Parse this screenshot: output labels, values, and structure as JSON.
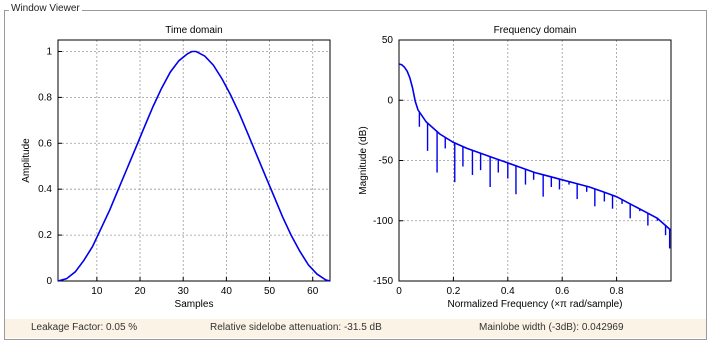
{
  "window": {
    "group_title": "Window Viewer"
  },
  "status": {
    "leakage": "Leakage Factor: 0.05 %",
    "sidelobe": "Relative sidelobe attenuation: -31.5 dB",
    "mainlobe": "Mainlobe width (-3dB): 0.042969"
  },
  "colors": {
    "line": "#0000ee",
    "grid": "#9a9a9a",
    "status_bg": "#fbf3e5"
  },
  "chart_data": [
    {
      "type": "line",
      "title": "Time domain",
      "xlabel": "Samples",
      "ylabel": "Amplitude",
      "xlim": [
        1,
        64
      ],
      "ylim": [
        0,
        1.05
      ],
      "xticks": [
        10,
        20,
        30,
        40,
        50,
        60
      ],
      "yticks": [
        0,
        0.2,
        0.4,
        0.6,
        0.8,
        1
      ],
      "grid": true,
      "series": [
        {
          "x": [
            1,
            3,
            5,
            7,
            9,
            11,
            13,
            15,
            17,
            19,
            21,
            23,
            25,
            27,
            29,
            31,
            32,
            33,
            35,
            37,
            39,
            41,
            43,
            45,
            47,
            49,
            51,
            53,
            55,
            57,
            59,
            61,
            63,
            64
          ],
          "y": [
            0.0,
            0.01,
            0.04,
            0.09,
            0.15,
            0.23,
            0.31,
            0.4,
            0.49,
            0.58,
            0.67,
            0.76,
            0.84,
            0.91,
            0.96,
            0.99,
            1.0,
            1.0,
            0.98,
            0.94,
            0.88,
            0.81,
            0.73,
            0.64,
            0.55,
            0.46,
            0.37,
            0.28,
            0.2,
            0.13,
            0.07,
            0.03,
            0.005,
            0.0
          ]
        }
      ]
    },
    {
      "type": "line",
      "title": "Frequency domain",
      "xlabel": "Normalized Frequency  (×π rad/sample)",
      "ylabel": "Magnitude (dB)",
      "xlim": [
        0,
        1
      ],
      "ylim": [
        -150,
        50
      ],
      "xticks": [
        0,
        0.2,
        0.4,
        0.6,
        0.8
      ],
      "yticks": [
        -150,
        -100,
        -50,
        0,
        50
      ],
      "grid": true,
      "series": [
        {
          "x": [
            0.0,
            0.01,
            0.02,
            0.03,
            0.04,
            0.05,
            0.06,
            0.07,
            0.1,
            0.15,
            0.2,
            0.25,
            0.3,
            0.35,
            0.4,
            0.45,
            0.5,
            0.55,
            0.6,
            0.65,
            0.7,
            0.75,
            0.8,
            0.85,
            0.9,
            0.95,
            1.0
          ],
          "y": [
            30.1,
            29.5,
            27.5,
            24.0,
            18.5,
            10.0,
            -1.0,
            -8.0,
            -18.0,
            -28.0,
            -35.0,
            -40.0,
            -44.0,
            -48.0,
            -52.0,
            -56.0,
            -60.0,
            -63.0,
            -66.0,
            -69.0,
            -72.0,
            -76.0,
            -80.0,
            -86.0,
            -92.0,
            -98.0,
            -108.0
          ]
        }
      ],
      "sidelobe_nulls_x": [
        0.075,
        0.105,
        0.14,
        0.17,
        0.205,
        0.235,
        0.27,
        0.3,
        0.335,
        0.365,
        0.4,
        0.43,
        0.465,
        0.495,
        0.53,
        0.56,
        0.59,
        0.625,
        0.655,
        0.69,
        0.72,
        0.755,
        0.785,
        0.82,
        0.85,
        0.885,
        0.915,
        0.95,
        0.98,
        0.995
      ],
      "sidelobe_nulls_y": [
        -22,
        -42,
        -60,
        -40,
        -68,
        -55,
        -62,
        -58,
        -72,
        -60,
        -65,
        -78,
        -70,
        -66,
        -80,
        -72,
        -74,
        -70,
        -82,
        -76,
        -88,
        -84,
        -90,
        -86,
        -98,
        -92,
        -104,
        -100,
        -112,
        -123
      ]
    }
  ]
}
